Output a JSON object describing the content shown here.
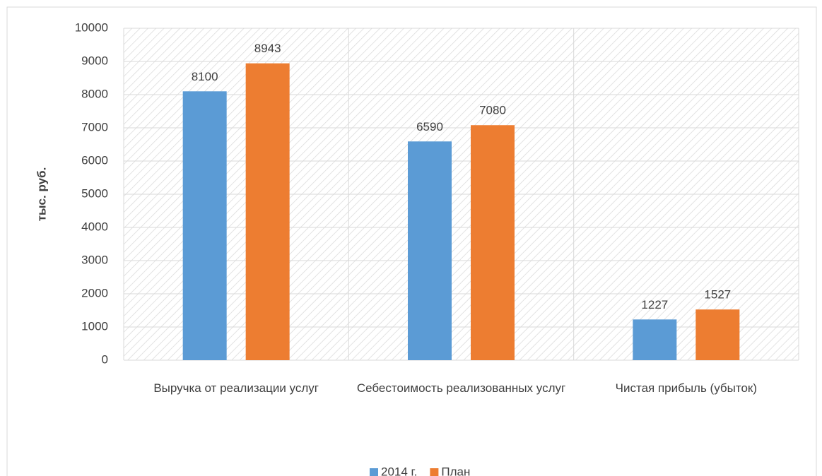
{
  "chart_data": {
    "type": "bar",
    "y_label": "тыс. руб.",
    "categories": [
      "Выручка от реализации услуг",
      "Себестоимость реализованных услуг",
      "Чистая прибыль (убыток)"
    ],
    "series": [
      {
        "name": "2014 г.",
        "color": "#5b9bd5",
        "values": [
          8100,
          6590,
          1227
        ]
      },
      {
        "name": "План",
        "color": "#ed7d31",
        "values": [
          8943,
          7080,
          1527
        ]
      }
    ],
    "ylim": [
      0,
      10000
    ],
    "yticks": [
      0,
      1000,
      2000,
      3000,
      4000,
      5000,
      6000,
      7000,
      8000,
      9000,
      10000
    ],
    "grid": true,
    "legend": "bottom"
  }
}
